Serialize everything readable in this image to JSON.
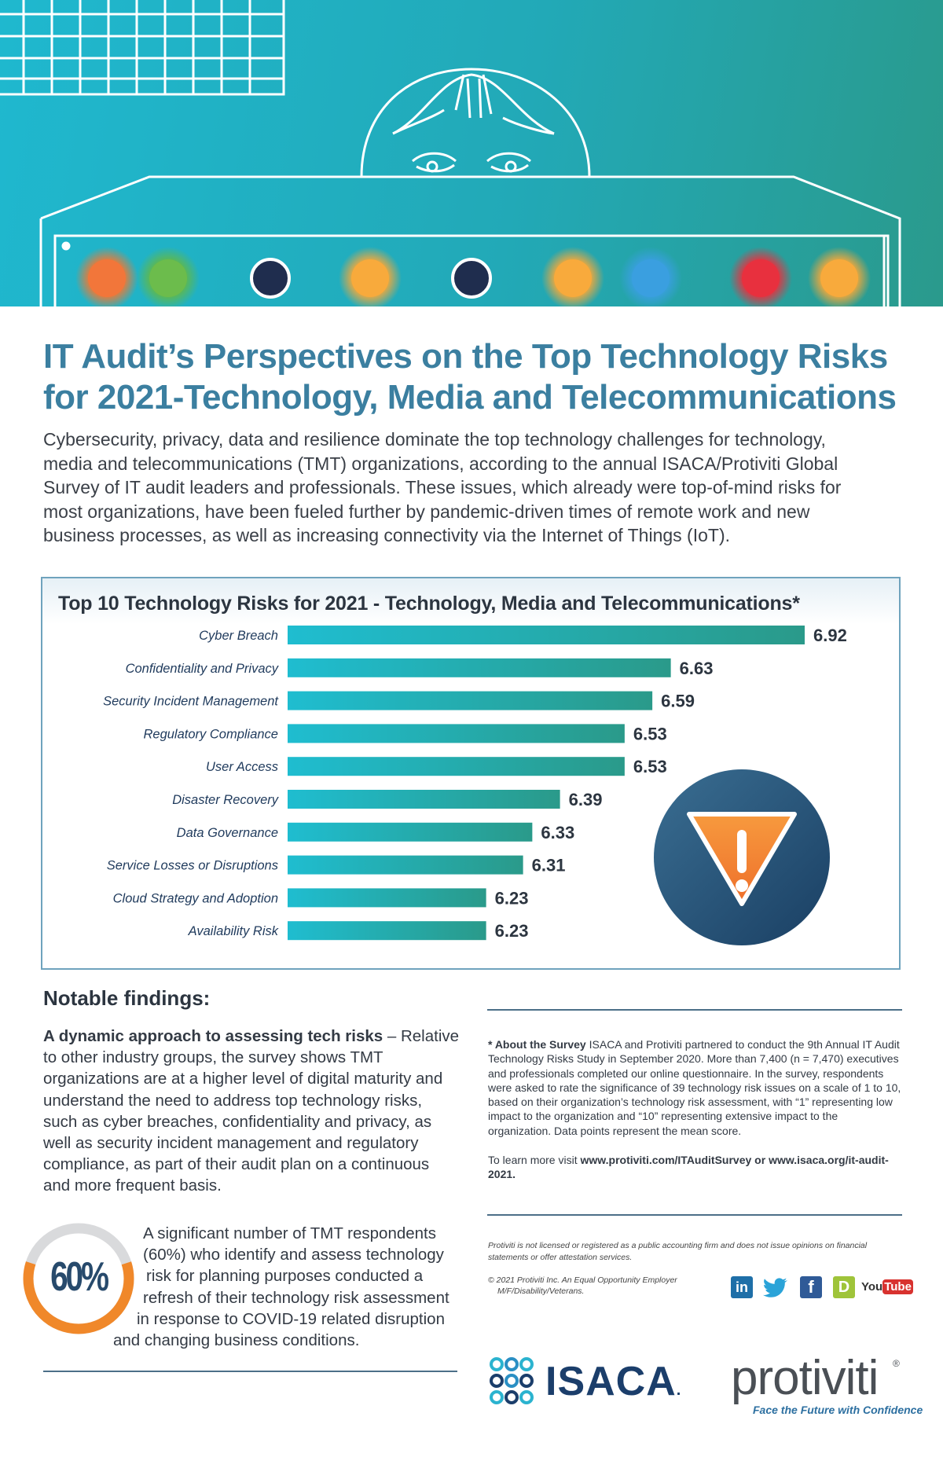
{
  "title": "IT Audit’s Perspectives on the Top Technology Risks for 2021-Technology, Media and Telecommunications",
  "title_lines": [
    "IT Audit’s Perspectives on the Top Technology Risks",
    "for 2021-Technology, Media and Telecommunications"
  ],
  "intro": "Cybersecurity, privacy, data and resilience dominate the top technology challenges for technology, media and telecommunications (TMT) organizations, according to the annual ISACA/Protiviti Global Survey of IT audit leaders and professionals. These issues, which already were top-of-mind risks for most organizations, have been fueled further by pandemic-driven times of remote work and new business processes, as well as increasing connectivity via the Internet of Things (IoT).",
  "intro_lines": [
    "Cybersecurity, privacy, data and resilience dominate the top technology challenges for technology,",
    "media and telecommunications (TMT) organizations, according to the annual ISACA/Protiviti Global",
    "Survey of IT audit leaders and professionals. These issues, which already were top-of-mind risks for",
    "most organizations, have been fueled further by pandemic-driven times of remote work and new",
    "business processes, as well as increasing connectivity via the Internet of Things (IoT)."
  ],
  "chart_data": {
    "type": "bar",
    "orientation": "horizontal",
    "title": "Top 10 Technology Risks for 2021 - Technology, Media and Telecommunications*",
    "categories": [
      "Cyber Breach",
      "Confidentiality and Privacy",
      "Security Incident Management",
      "Regulatory Compliance",
      "User Access",
      "Disaster Recovery",
      "Data Governance",
      "Service Losses or Disruptions",
      "Cloud Strategy and Adoption",
      "Availability Risk"
    ],
    "values": [
      6.92,
      6.63,
      6.59,
      6.53,
      6.53,
      6.39,
      6.33,
      6.31,
      6.23,
      6.23
    ],
    "value_labels": [
      "6.92",
      "6.63",
      "6.59",
      "6.53",
      "6.53",
      "6.39",
      "6.33",
      "6.31",
      "6.23",
      "6.23"
    ],
    "xlim": [
      5.8,
      6.92
    ],
    "grid": false,
    "legend": "none",
    "bar_gradient": [
      "#1fbdd0",
      "#2a9a8a"
    ]
  },
  "findings": {
    "heading": "Notable findings:",
    "item1_bold": "A dynamic approach to assessing tech risks",
    "item1_text": " – Relative to other industry groups, the survey shows TMT organizations are at a higher level of digital maturity and understand the need to address top technology risks, such as cyber breaches, confidentiality and privacy, as well as security incident management and regulatory compliance, as part of their audit plan on a continuous and more frequent basis.",
    "stat_value": "60%",
    "stat_fraction": 0.6,
    "item2_lines": [
      "A significant number of TMT respondents",
      "(60%) who identify and assess technology",
      "risk for planning purposes conducted a",
      "refresh of their technology risk assessment",
      "in response to COVID-19 related disruption",
      "and changing business conditions."
    ]
  },
  "about": {
    "bold": "* About the Survey",
    "text": "  ISACA and Protiviti partnered to conduct the 9th Annual IT Audit Technology Risks Study in September 2020. More than 7,400 (n = 7,470) executives and professionals completed our online questionnaire. In the survey, respondents were asked to rate the significance of 39 technology risk issues on a scale of 1 to 10, based on their organization’s technology risk assessment, with “1” representing low impact to the organization and “10” representing extensive impact to the organization. Data points represent the mean score.",
    "learn_prefix": "To learn more visit ",
    "learn_link1": "www.protiviti.com/ITAuditSurvey",
    "learn_mid": " or ",
    "learn_link2": "www.isaca.org/it-audit-2021."
  },
  "disclaimer": "Protiviti is not licensed or registered as a public accounting firm and does not issue opinions on financial statements or offer attestation services.",
  "copyright_lines": [
    "© 2021 Protiviti Inc. An Equal Opportunity Employer",
    "M/F/Disability/Veterans."
  ],
  "social": {
    "linkedin": "in",
    "twitter": "twitter-bird-icon",
    "facebook": "f",
    "blog": "D",
    "youtube_you": "You",
    "youtube_tube": "Tube"
  },
  "logos": {
    "isaca": "ISACA",
    "isaca_mark": ".",
    "protiviti": "protiviti",
    "protiviti_reg": "®",
    "protiviti_tagline": "Face the Future with Confidence"
  },
  "colors": {
    "title": "#3b7fa0",
    "chart_border": "#6fa3bd",
    "donut_orange": "#f0882a",
    "donut_gray": "#d9dadc",
    "warning_orange": "#f07f2e",
    "warning_circle": "#1e4a70"
  }
}
